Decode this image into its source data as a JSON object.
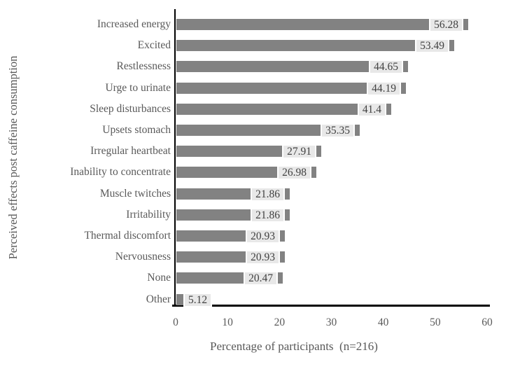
{
  "chart_data": {
    "type": "bar",
    "orientation": "horizontal",
    "title": "",
    "xlabel": "Percentage of participants  (n=216)",
    "ylabel": "Perceived effects post caffeine consumption",
    "categories": [
      "Increased energy",
      "Excited",
      "Restlessness",
      "Urge to urinate",
      "Sleep disturbances",
      "Upsets stomach",
      "Irregular heartbeat",
      "Inability to concentrate",
      "Muscle twitches",
      "Irritability",
      "Thermal discomfort",
      "Nervousness",
      "None",
      "Other"
    ],
    "values": [
      56.28,
      53.49,
      44.65,
      44.19,
      41.4,
      35.35,
      27.91,
      26.98,
      21.86,
      21.86,
      20.93,
      20.93,
      20.47,
      5.12
    ],
    "value_labels": [
      "56.28",
      "53.49",
      "44.65",
      "44.19",
      "41.4",
      "35.35",
      "27.91",
      "26.98",
      "21.86",
      "21.86",
      "20.93",
      "20.93",
      "20.47",
      "5.12"
    ],
    "xlim": [
      0,
      60
    ],
    "xticks": [
      0,
      10,
      20,
      30,
      40,
      50,
      60
    ],
    "grid": false,
    "legend": null,
    "colors": {
      "bar": "#828282",
      "value_label_bg": "#e8e8e8",
      "value_label_border": "#ffffff",
      "value_label_text": "#414141",
      "axis_text": "#595959",
      "axis_line": "#000000"
    }
  }
}
